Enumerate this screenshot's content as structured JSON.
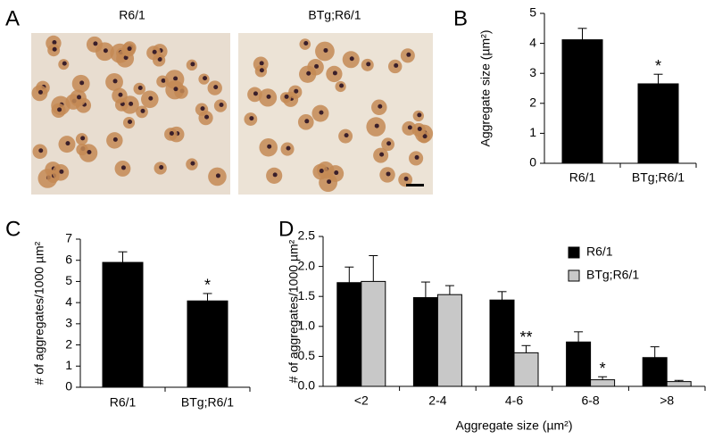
{
  "panels": {
    "A": {
      "letter": "A",
      "images": [
        {
          "label": "R6/1"
        },
        {
          "label": "BTg;R6/1"
        }
      ]
    },
    "B": {
      "letter": "B"
    },
    "C": {
      "letter": "C"
    },
    "D": {
      "letter": "D"
    }
  },
  "chart_data": [
    {
      "type": "bar",
      "ylabel": "Aggregate size (µm²)",
      "categories": [
        "R6/1",
        "BTg;R6/1"
      ],
      "series": [
        {
          "color": "#000000",
          "values": [
            4.12,
            2.65
          ],
          "errors": [
            0.38,
            0.32
          ],
          "significance": [
            null,
            "*"
          ]
        }
      ],
      "ylim": [
        0,
        5
      ],
      "yticks": [
        0,
        1,
        2,
        3,
        4,
        5
      ]
    },
    {
      "type": "bar",
      "ylabel": "# of aggregates/1000 µm²",
      "categories": [
        "R6/1",
        "BTg;R6/1"
      ],
      "series": [
        {
          "color": "#000000",
          "values": [
            5.9,
            4.08
          ],
          "errors": [
            0.5,
            0.35
          ],
          "significance": [
            null,
            "*"
          ]
        }
      ],
      "ylim": [
        0,
        7
      ],
      "yticks": [
        0,
        1,
        2,
        3,
        4,
        5,
        6,
        7
      ]
    },
    {
      "type": "bar",
      "ylabel": "# of aggregates/1000 µm²",
      "xlabel": "Aggregate size (µm²)",
      "categories": [
        "<2",
        "2-4",
        "4-6",
        "6-8",
        ">8"
      ],
      "series": [
        {
          "name": "R6/1",
          "color": "#000000",
          "values": [
            1.73,
            1.48,
            1.44,
            0.74,
            0.48
          ],
          "errors": [
            0.26,
            0.26,
            0.14,
            0.17,
            0.18
          ],
          "significance": [
            null,
            null,
            null,
            null,
            null
          ]
        },
        {
          "name": "BTg;R6/1",
          "color": "#c8c8c8",
          "values": [
            1.75,
            1.53,
            0.56,
            0.11,
            0.08
          ],
          "errors": [
            0.43,
            0.15,
            0.12,
            0.05,
            0.02
          ],
          "significance": [
            null,
            null,
            "**",
            "*",
            null
          ]
        }
      ],
      "ylim": [
        0,
        2.5
      ],
      "yticks": [
        {
          "value": 0,
          "label": "0.0"
        },
        0.5,
        {
          "value": 1,
          "label": "1.0"
        },
        1.5,
        {
          "value": 2,
          "label": "2.0"
        },
        2.5
      ],
      "legend": "upper right"
    }
  ]
}
